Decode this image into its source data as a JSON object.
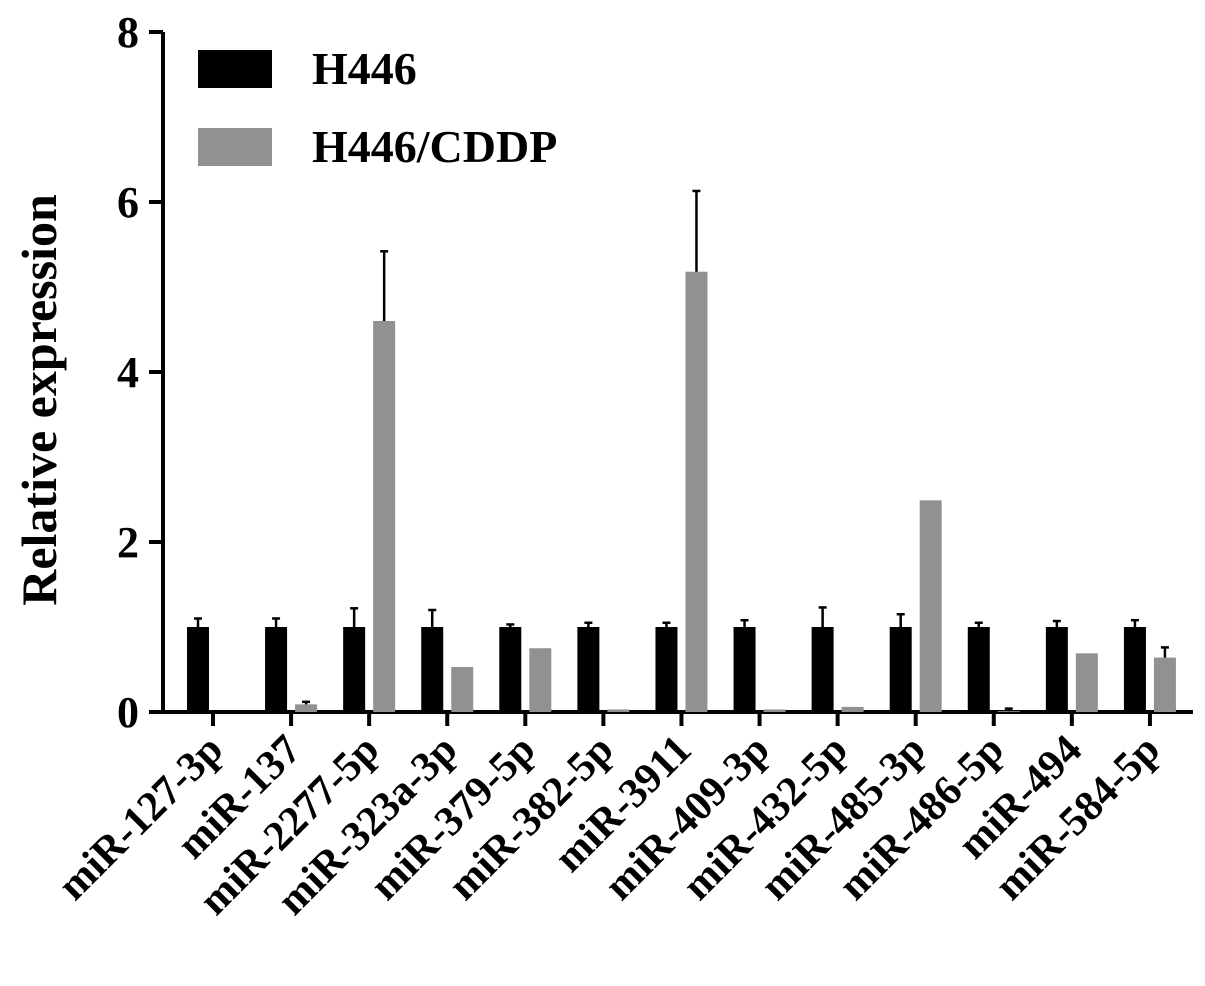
{
  "chart_data": {
    "type": "bar",
    "title": "",
    "xlabel": "",
    "ylabel": "Relative expression",
    "ylim": [
      0,
      8
    ],
    "yticks": [
      "0",
      "2",
      "4",
      "6",
      "8"
    ],
    "grid": false,
    "legend_position": "top-left",
    "categories": [
      "miR-127-3p",
      "miR-137",
      "miR-2277-5p",
      "miR-323a-3p",
      "miR-379-5p",
      "miR-382-5p",
      "miR-3911",
      "miR-409-3p",
      "miR-432-5p",
      "miR-485-3p",
      "miR-486-5p",
      "miR-494",
      "miR-584-5p"
    ],
    "series": [
      {
        "name": "H446",
        "color": "#000000",
        "values": [
          1.0,
          1.0,
          1.0,
          1.0,
          1.0,
          1.0,
          1.0,
          1.0,
          1.0,
          1.0,
          1.0,
          1.0,
          1.0
        ],
        "errors": [
          0.1,
          0.1,
          0.22,
          0.2,
          0.03,
          0.05,
          0.05,
          0.08,
          0.23,
          0.15,
          0.05,
          0.07,
          0.08
        ]
      },
      {
        "name": "H446/CDDP",
        "color": "#919191",
        "values": [
          0.0,
          0.09,
          4.6,
          0.53,
          0.75,
          0.03,
          5.18,
          0.03,
          0.06,
          2.49,
          0.01,
          0.69,
          0.64
        ],
        "errors": [
          0.0,
          0.03,
          0.82,
          0.0,
          0.0,
          0.0,
          0.95,
          0.0,
          0.0,
          0.0,
          0.03,
          0.0,
          0.12
        ]
      }
    ]
  }
}
